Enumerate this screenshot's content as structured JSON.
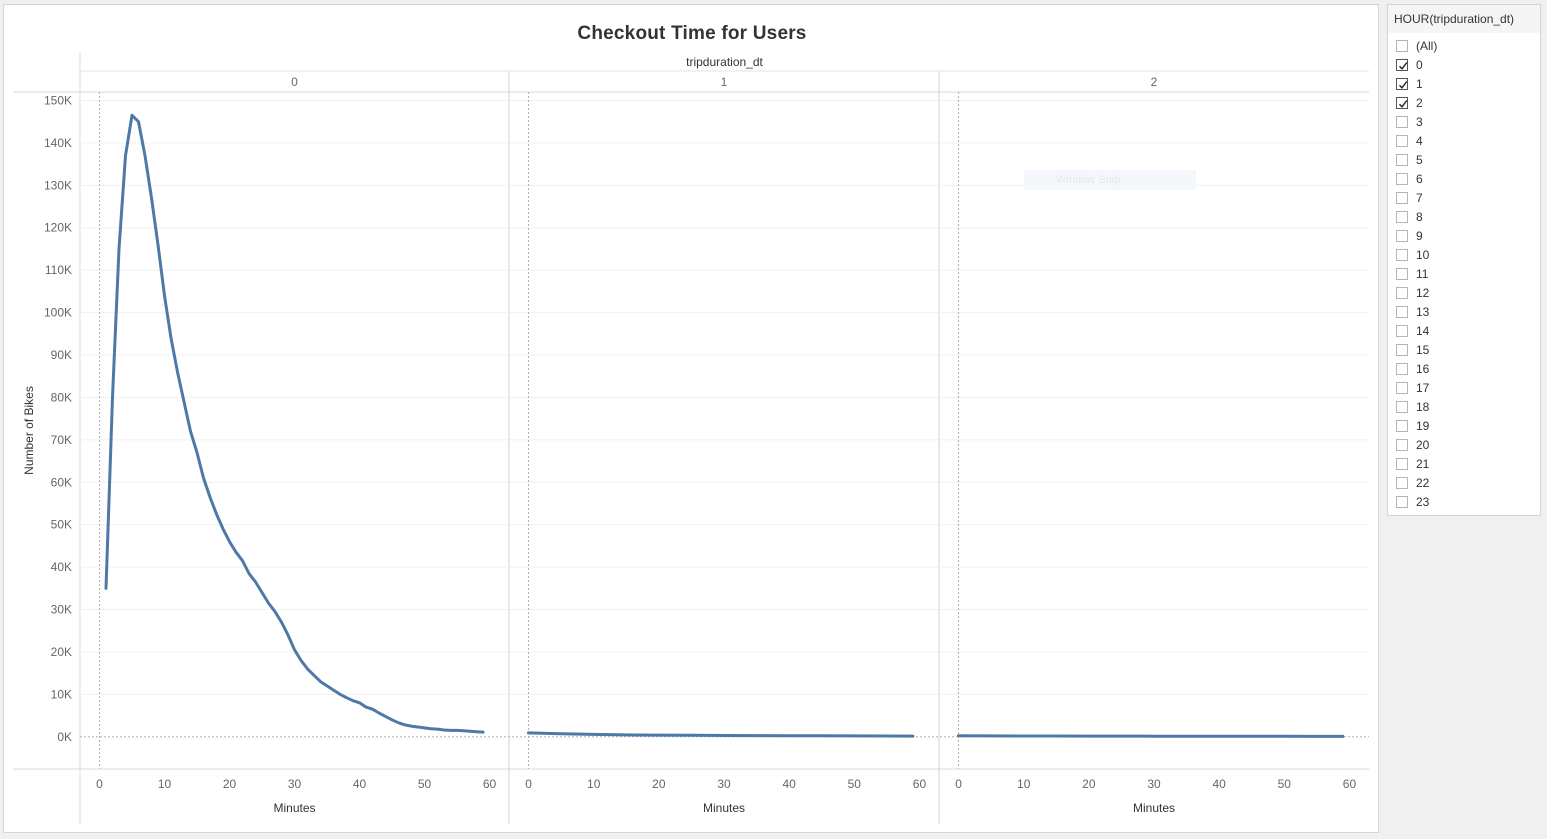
{
  "chart_data": {
    "type": "line",
    "title": "Checkout Time for Users",
    "column_header": "tripduration_dt",
    "ylabel": "Number of Bikes",
    "xlabel": "Minutes",
    "ylim": [
      -7600,
      152000
    ],
    "xlim": [
      -3,
      63
    ],
    "y_ticks": [
      0,
      10000,
      20000,
      30000,
      40000,
      50000,
      60000,
      70000,
      80000,
      90000,
      100000,
      110000,
      120000,
      130000,
      140000,
      150000
    ],
    "y_tick_labels": [
      "0K",
      "10K",
      "20K",
      "30K",
      "40K",
      "50K",
      "60K",
      "70K",
      "80K",
      "90K",
      "100K",
      "110K",
      "120K",
      "130K",
      "140K",
      "150K"
    ],
    "x_ticks": [
      0,
      10,
      20,
      30,
      40,
      50,
      60
    ],
    "x_tick_labels": [
      "0",
      "10",
      "20",
      "30",
      "40",
      "50",
      "60"
    ],
    "grid": true,
    "color": "#4e79a7",
    "panels": [
      {
        "name": "0",
        "x": [
          1,
          2,
          3,
          4,
          5,
          6,
          7,
          8,
          9,
          10,
          11,
          12,
          13,
          14,
          15,
          16,
          17,
          18,
          19,
          20,
          21,
          22,
          23,
          24,
          25,
          26,
          27,
          28,
          29,
          30,
          31,
          32,
          33,
          34,
          35,
          36,
          37,
          38,
          39,
          40,
          41,
          42,
          43,
          44,
          45,
          46,
          47,
          48,
          49,
          50,
          51,
          52,
          53,
          54,
          55,
          56,
          57,
          58,
          59
        ],
        "y": [
          35000,
          80000,
          115000,
          137000,
          146500,
          145000,
          137000,
          127000,
          116000,
          104000,
          94000,
          86000,
          79000,
          72000,
          67000,
          61000,
          56500,
          52500,
          49000,
          46000,
          43500,
          41500,
          38500,
          36500,
          34000,
          31500,
          29500,
          27000,
          24000,
          20500,
          18000,
          16000,
          14500,
          13000,
          12000,
          11000,
          10000,
          9200,
          8500,
          8000,
          7000,
          6500,
          5600,
          4800,
          4000,
          3300,
          2800,
          2500,
          2300,
          2100,
          1900,
          1800,
          1600,
          1500,
          1500,
          1400,
          1300,
          1200,
          1100
        ]
      },
      {
        "name": "1",
        "x": [
          0,
          5,
          10,
          15,
          20,
          25,
          30,
          35,
          40,
          45,
          50,
          55,
          59
        ],
        "y": [
          900,
          700,
          550,
          450,
          400,
          350,
          300,
          270,
          240,
          220,
          200,
          180,
          160
        ]
      },
      {
        "name": "2",
        "x": [
          0,
          5,
          10,
          15,
          20,
          25,
          30,
          35,
          40,
          45,
          50,
          55,
          59
        ],
        "y": [
          220,
          200,
          180,
          170,
          160,
          150,
          140,
          130,
          120,
          110,
          100,
          95,
          90
        ]
      }
    ]
  },
  "filter": {
    "title": "HOUR(tripduration_dt)",
    "items": [
      {
        "label": "(All)",
        "checked": false
      },
      {
        "label": "0",
        "checked": true
      },
      {
        "label": "1",
        "checked": true
      },
      {
        "label": "2",
        "checked": true
      },
      {
        "label": "3",
        "checked": false
      },
      {
        "label": "4",
        "checked": false
      },
      {
        "label": "5",
        "checked": false
      },
      {
        "label": "6",
        "checked": false
      },
      {
        "label": "7",
        "checked": false
      },
      {
        "label": "8",
        "checked": false
      },
      {
        "label": "9",
        "checked": false
      },
      {
        "label": "10",
        "checked": false
      },
      {
        "label": "11",
        "checked": false
      },
      {
        "label": "12",
        "checked": false
      },
      {
        "label": "13",
        "checked": false
      },
      {
        "label": "14",
        "checked": false
      },
      {
        "label": "15",
        "checked": false
      },
      {
        "label": "16",
        "checked": false
      },
      {
        "label": "17",
        "checked": false
      },
      {
        "label": "18",
        "checked": false
      },
      {
        "label": "19",
        "checked": false
      },
      {
        "label": "20",
        "checked": false
      },
      {
        "label": "21",
        "checked": false
      },
      {
        "label": "22",
        "checked": false
      },
      {
        "label": "23",
        "checked": false
      }
    ]
  },
  "overlay": {
    "snip_label": "Window Snip"
  }
}
